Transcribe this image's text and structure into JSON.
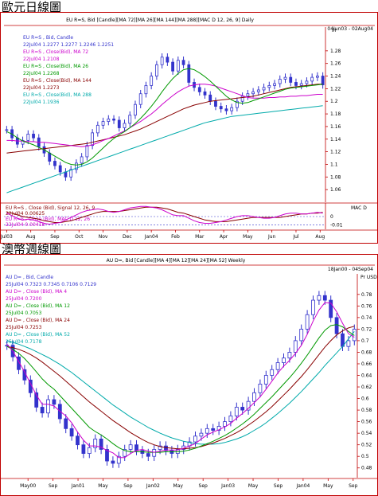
{
  "section1": {
    "title": "歐元日線圖"
  },
  "section2": {
    "title": "澳幣週線圖"
  },
  "chart_data": [
    {
      "type": "line",
      "title": "EU R=S, Bid [Candle][MA 72][MA 26][MA 144][MA 288][MAC D 12, 26, 9] Daily",
      "date_range": "04Jun03 - 02Aug04",
      "price_unit": "Pr",
      "legend": [
        {
          "label": "EU R=S , Bid, Candle",
          "color": "#3333cc"
        },
        {
          "label": "22Jul04 1.2277 1.2277 1.2246 1.2251",
          "color": "#3333cc"
        },
        {
          "label": "EU R=S , Close(Bid), MA 72",
          "color": "#cc00cc"
        },
        {
          "label": "22Jul04 1.2108",
          "color": "#cc00cc"
        },
        {
          "label": "EU R=S , Close(Bid), MA 26",
          "color": "#009900"
        },
        {
          "label": "22Jul04 1.2268",
          "color": "#009900"
        },
        {
          "label": "EU R=S , Close(Bid), MA 144",
          "color": "#880000"
        },
        {
          "label": "22Jul04 1.2273",
          "color": "#880000"
        },
        {
          "label": "EU R=S , Close(Bid), MA 288",
          "color": "#00aaaa"
        },
        {
          "label": "22Jul04 1.1936",
          "color": "#00aaaa"
        }
      ],
      "ylim": [
        1.04,
        1.3
      ],
      "yticks": [
        "1.28",
        "1.26",
        "1.24",
        "1.22",
        "1.2",
        "1.18",
        "1.16",
        "1.14",
        "1.12",
        "1.1",
        "1.08",
        "1.06"
      ],
      "ytick_values": [
        1.28,
        1.26,
        1.24,
        1.22,
        1.2,
        1.18,
        1.16,
        1.14,
        1.12,
        1.1,
        1.08,
        1.06
      ],
      "xticks": [
        "Jul03",
        "Aug",
        "Sep",
        "Oct",
        "Nov",
        "Dec",
        "Jan04",
        "Feb",
        "Mar",
        "Apr",
        "May",
        "Jun",
        "Jul",
        "Aug"
      ],
      "x_index_range": [
        0,
        60
      ],
      "xtick_index": [
        0,
        4.5,
        9,
        13.5,
        18,
        22.5,
        27,
        31.5,
        36,
        40.5,
        45,
        49.5,
        54,
        58.5
      ],
      "close": [
        1.155,
        1.142,
        1.132,
        1.138,
        1.148,
        1.142,
        1.128,
        1.118,
        1.105,
        1.098,
        1.088,
        1.08,
        1.092,
        1.102,
        1.112,
        1.13,
        1.15,
        1.162,
        1.168,
        1.172,
        1.17,
        1.158,
        1.165,
        1.178,
        1.195,
        1.212,
        1.225,
        1.24,
        1.258,
        1.27,
        1.262,
        1.248,
        1.265,
        1.258,
        1.23,
        1.222,
        1.215,
        1.21,
        1.2,
        1.192,
        1.188,
        1.185,
        1.19,
        1.2,
        1.208,
        1.212,
        1.215,
        1.218,
        1.222,
        1.225,
        1.228,
        1.235,
        1.238,
        1.23,
        1.225,
        1.228,
        1.232,
        1.238,
        1.24,
        1.226
      ],
      "ma72": [
        1.138,
        1.138,
        1.137,
        1.137,
        1.136,
        1.136,
        1.135,
        1.135,
        1.134,
        1.133,
        1.132,
        1.131,
        1.13,
        1.129,
        1.128,
        1.129,
        1.131,
        1.134,
        1.138,
        1.141,
        1.145,
        1.149,
        1.153,
        1.158,
        1.163,
        1.168,
        1.174,
        1.18,
        1.187,
        1.195,
        1.202,
        1.209,
        1.215,
        1.22,
        1.224,
        1.226,
        1.227,
        1.227,
        1.226,
        1.224,
        1.221,
        1.218,
        1.215,
        1.212,
        1.209,
        1.206,
        1.205,
        1.205,
        1.205,
        1.206,
        1.206,
        1.207,
        1.207,
        1.208,
        1.208,
        1.209,
        1.209,
        1.21,
        1.211,
        1.211
      ],
      "ma26": [
        1.152,
        1.148,
        1.142,
        1.137,
        1.134,
        1.131,
        1.127,
        1.123,
        1.118,
        1.113,
        1.108,
        1.103,
        1.1,
        1.099,
        1.1,
        1.104,
        1.11,
        1.118,
        1.126,
        1.134,
        1.141,
        1.147,
        1.152,
        1.158,
        1.165,
        1.173,
        1.182,
        1.192,
        1.203,
        1.215,
        1.226,
        1.236,
        1.244,
        1.25,
        1.252,
        1.25,
        1.245,
        1.239,
        1.232,
        1.224,
        1.216,
        1.208,
        1.202,
        1.198,
        1.197,
        1.198,
        1.201,
        1.204,
        1.207,
        1.21,
        1.213,
        1.216,
        1.219,
        1.221,
        1.222,
        1.223,
        1.224,
        1.225,
        1.226,
        1.227
      ],
      "ma144": [
        1.118,
        1.119,
        1.12,
        1.121,
        1.122,
        1.123,
        1.124,
        1.125,
        1.126,
        1.127,
        1.128,
        1.129,
        1.13,
        1.131,
        1.132,
        1.133,
        1.135,
        1.137,
        1.139,
        1.141,
        1.143,
        1.145,
        1.147,
        1.15,
        1.153,
        1.156,
        1.16,
        1.164,
        1.168,
        1.172,
        1.176,
        1.18,
        1.184,
        1.188,
        1.191,
        1.194,
        1.196,
        1.198,
        1.2,
        1.201,
        1.202,
        1.203,
        1.204,
        1.205,
        1.206,
        1.207,
        1.208,
        1.21,
        1.212,
        1.214,
        1.216,
        1.218,
        1.22,
        1.222,
        1.223,
        1.224,
        1.225,
        1.226,
        1.227,
        1.227
      ],
      "ma288": [
        1.055,
        1.058,
        1.061,
        1.064,
        1.067,
        1.07,
        1.073,
        1.076,
        1.079,
        1.082,
        1.085,
        1.088,
        1.091,
        1.094,
        1.097,
        1.1,
        1.103,
        1.106,
        1.109,
        1.112,
        1.115,
        1.118,
        1.121,
        1.124,
        1.127,
        1.13,
        1.133,
        1.136,
        1.139,
        1.142,
        1.145,
        1.148,
        1.151,
        1.154,
        1.157,
        1.16,
        1.163,
        1.166,
        1.168,
        1.17,
        1.172,
        1.174,
        1.176,
        1.177,
        1.178,
        1.179,
        1.18,
        1.181,
        1.182,
        1.183,
        1.184,
        1.185,
        1.186,
        1.187,
        1.188,
        1.189,
        1.19,
        1.191,
        1.192,
        1.193
      ],
      "macd": {
        "unit": "MAC D",
        "legend": [
          {
            "label": "EU R=S , Close (Bid), Signal 12, 26, 9",
            "color": "#880000"
          },
          {
            "label": "22Jul04 0.00625",
            "color": "#880000"
          },
          {
            "label": "EU R=S , Close (Bid), MAC D 12, 26",
            "color": "#cc00cc"
          },
          {
            "label": "22Jul04 0.00418",
            "color": "#cc00cc"
          }
        ],
        "ylim": [
          -0.015,
          0.015
        ],
        "yticks": [
          "0",
          "-0.01"
        ],
        "ytick_values": [
          0,
          -0.01
        ],
        "macd": [
          0.004,
          0.001,
          -0.002,
          -0.004,
          -0.003,
          -0.004,
          -0.006,
          -0.008,
          -0.009,
          -0.008,
          -0.007,
          -0.004,
          -0.001,
          0.002,
          0.005,
          0.007,
          0.008,
          0.009,
          0.008,
          0.006,
          0.005,
          0.006,
          0.008,
          0.01,
          0.011,
          0.012,
          0.012,
          0.011,
          0.01,
          0.008,
          0.005,
          0.002,
          0.001,
          0.001,
          -0.002,
          -0.005,
          -0.007,
          -0.008,
          -0.008,
          -0.007,
          -0.006,
          -0.004,
          -0.002,
          0.0,
          0.001,
          0.001,
          0.0,
          -0.001,
          -0.002,
          -0.002,
          -0.001,
          0.001,
          0.003,
          0.004,
          0.004,
          0.003,
          0.003,
          0.004,
          0.005,
          0.004
        ],
        "signal": [
          0.005,
          0.004,
          0.002,
          0.0,
          -0.001,
          -0.002,
          -0.003,
          -0.005,
          -0.006,
          -0.007,
          -0.007,
          -0.006,
          -0.005,
          -0.003,
          -0.001,
          0.001,
          0.003,
          0.005,
          0.006,
          0.006,
          0.006,
          0.006,
          0.007,
          0.008,
          0.009,
          0.01,
          0.011,
          0.011,
          0.011,
          0.01,
          0.009,
          0.007,
          0.005,
          0.004,
          0.002,
          0.0,
          -0.002,
          -0.004,
          -0.005,
          -0.006,
          -0.006,
          -0.006,
          -0.005,
          -0.004,
          -0.003,
          -0.002,
          -0.001,
          -0.001,
          -0.001,
          -0.001,
          -0.001,
          -0.001,
          0.0,
          0.001,
          0.002,
          0.003,
          0.003,
          0.004,
          0.004,
          0.005
        ]
      }
    },
    {
      "type": "line",
      "title": "AU D=, Bid [Candle][MA 4][MA 12][MA 24][MA 52] Weekly",
      "date_range": "18Jan00 - 04Sep04",
      "price_unit": "Pr USD",
      "legend": [
        {
          "label": "AU D= , Bid, Candle",
          "color": "#3333cc"
        },
        {
          "label": "25Jul04 0.7323 0.7345 0.7106 0.7129",
          "color": "#3333cc"
        },
        {
          "label": "AU D= , Close (Bid), MA 4",
          "color": "#cc00cc"
        },
        {
          "label": "25Jul04 0.7200",
          "color": "#cc00cc"
        },
        {
          "label": "AU D= , Close (Bid), MA 12",
          "color": "#009900"
        },
        {
          "label": "25Jul04 0.7053",
          "color": "#009900"
        },
        {
          "label": "AU D= , Close (Bid), MA 24",
          "color": "#880000"
        },
        {
          "label": "25Jul04 0.7253",
          "color": "#880000"
        },
        {
          "label": "AU D= , Close (Bid), MA 52",
          "color": "#00aaaa"
        },
        {
          "label": "25Jul04 0.7178",
          "color": "#00aaaa"
        }
      ],
      "ylim": [
        0.47,
        0.81
      ],
      "yticks": [
        "0.78",
        "0.76",
        "0.74",
        "0.72",
        "0.7",
        "0.68",
        "0.66",
        "0.64",
        "0.62",
        "0.6",
        "0.58",
        "0.56",
        "0.54",
        "0.52",
        "0.5",
        "0.48"
      ],
      "ytick_values": [
        0.78,
        0.76,
        0.74,
        0.72,
        0.7,
        0.68,
        0.66,
        0.64,
        0.62,
        0.6,
        0.58,
        0.56,
        0.54,
        0.52,
        0.5,
        0.48
      ],
      "xticks": [
        "May00",
        "Sep",
        "Jan01",
        "May",
        "Sep",
        "Jan02",
        "May",
        "Sep",
        "Jan03",
        "May",
        "Sep",
        "Jan04",
        "May",
        "Sep"
      ],
      "x_index_range": [
        0,
        60
      ],
      "xtick_index": [
        5,
        11,
        17,
        23,
        29,
        35,
        41,
        47,
        53,
        59,
        65,
        71,
        77,
        83
      ],
      "close": [
        0.692,
        0.672,
        0.65,
        0.632,
        0.61,
        0.585,
        0.575,
        0.598,
        0.59,
        0.565,
        0.548,
        0.535,
        0.52,
        0.505,
        0.515,
        0.53,
        0.512,
        0.492,
        0.488,
        0.5,
        0.512,
        0.52,
        0.51,
        0.505,
        0.5,
        0.512,
        0.518,
        0.51,
        0.505,
        0.512,
        0.518,
        0.525,
        0.535,
        0.54,
        0.548,
        0.545,
        0.552,
        0.56,
        0.57,
        0.585,
        0.58,
        0.595,
        0.61,
        0.625,
        0.64,
        0.65,
        0.662,
        0.67,
        0.68,
        0.7,
        0.72,
        0.745,
        0.77,
        0.778,
        0.77,
        0.74,
        0.712,
        0.69,
        0.7,
        0.72
      ],
      "ma4": [
        0.694,
        0.682,
        0.664,
        0.646,
        0.626,
        0.606,
        0.59,
        0.59,
        0.587,
        0.578,
        0.57,
        0.558,
        0.542,
        0.528,
        0.518,
        0.518,
        0.516,
        0.51,
        0.506,
        0.498,
        0.498,
        0.505,
        0.51,
        0.512,
        0.509,
        0.507,
        0.509,
        0.511,
        0.511,
        0.511,
        0.514,
        0.518,
        0.522,
        0.53,
        0.537,
        0.542,
        0.546,
        0.551,
        0.557,
        0.566,
        0.574,
        0.583,
        0.593,
        0.603,
        0.616,
        0.63,
        0.644,
        0.656,
        0.666,
        0.678,
        0.692,
        0.711,
        0.734,
        0.753,
        0.766,
        0.765,
        0.75,
        0.73,
        0.712,
        0.706
      ],
      "ma12": [
        0.69,
        0.685,
        0.678,
        0.669,
        0.658,
        0.646,
        0.634,
        0.624,
        0.616,
        0.605,
        0.594,
        0.583,
        0.572,
        0.561,
        0.55,
        0.543,
        0.537,
        0.53,
        0.522,
        0.515,
        0.51,
        0.508,
        0.508,
        0.508,
        0.507,
        0.507,
        0.507,
        0.508,
        0.508,
        0.508,
        0.509,
        0.511,
        0.514,
        0.518,
        0.522,
        0.526,
        0.531,
        0.536,
        0.542,
        0.549,
        0.556,
        0.564,
        0.573,
        0.583,
        0.593,
        0.603,
        0.614,
        0.625,
        0.636,
        0.648,
        0.661,
        0.675,
        0.69,
        0.705,
        0.718,
        0.726,
        0.728,
        0.724,
        0.716,
        0.709
      ],
      "ma24": [
        0.69,
        0.688,
        0.685,
        0.681,
        0.676,
        0.67,
        0.663,
        0.655,
        0.647,
        0.639,
        0.63,
        0.621,
        0.612,
        0.603,
        0.594,
        0.586,
        0.578,
        0.57,
        0.562,
        0.555,
        0.548,
        0.541,
        0.535,
        0.529,
        0.524,
        0.52,
        0.517,
        0.515,
        0.514,
        0.513,
        0.513,
        0.514,
        0.515,
        0.517,
        0.52,
        0.523,
        0.527,
        0.531,
        0.536,
        0.541,
        0.547,
        0.554,
        0.561,
        0.569,
        0.577,
        0.586,
        0.596,
        0.606,
        0.616,
        0.627,
        0.638,
        0.65,
        0.663,
        0.676,
        0.689,
        0.7,
        0.71,
        0.717,
        0.722,
        0.725
      ],
      "ma52": [
        0.7,
        0.697,
        0.694,
        0.69,
        0.686,
        0.681,
        0.676,
        0.671,
        0.665,
        0.659,
        0.652,
        0.645,
        0.637,
        0.629,
        0.621,
        0.613,
        0.605,
        0.597,
        0.589,
        0.582,
        0.575,
        0.568,
        0.562,
        0.556,
        0.55,
        0.545,
        0.54,
        0.536,
        0.532,
        0.529,
        0.526,
        0.524,
        0.522,
        0.521,
        0.521,
        0.521,
        0.522,
        0.524,
        0.527,
        0.53,
        0.534,
        0.539,
        0.545,
        0.551,
        0.558,
        0.566,
        0.574,
        0.583,
        0.592,
        0.602,
        0.612,
        0.623,
        0.634,
        0.645,
        0.657,
        0.668,
        0.679,
        0.69,
        0.703,
        0.716
      ]
    }
  ]
}
